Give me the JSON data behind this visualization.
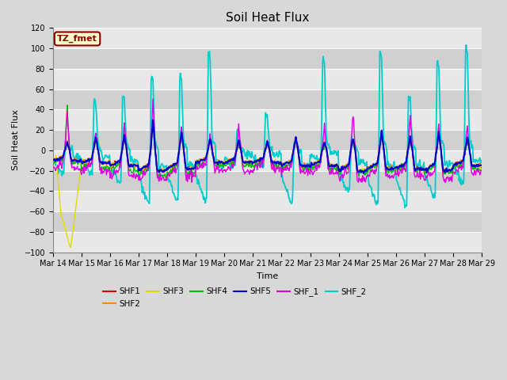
{
  "title": "Soil Heat Flux",
  "xlabel": "Time",
  "ylabel": "Soil Heat Flux",
  "ylim": [
    -100,
    120
  ],
  "bg_color": "#d8d8d8",
  "plot_bg_light": "#e8e8e8",
  "plot_bg_dark": "#d0d0d0",
  "grid_color": "#ffffff",
  "annotation_text": "TZ_fmet",
  "annotation_bg": "#ffffcc",
  "annotation_border": "#880000",
  "series_colors": {
    "SHF1": "#dd0000",
    "SHF2": "#ff8800",
    "SHF3": "#dddd00",
    "SHF4": "#00bb00",
    "SHF5": "#0000cc",
    "SHF_1": "#dd00dd",
    "SHF_2": "#00cccc"
  },
  "x_tick_labels": [
    "Mar 14",
    "Mar 15",
    "Mar 16",
    "Mar 17",
    "Mar 18",
    "Mar 19",
    "Mar 20",
    "Mar 21",
    "Mar 22",
    "Mar 23",
    "Mar 24",
    "Mar 25",
    "Mar 26",
    "Mar 27",
    "Mar 28",
    "Mar 29"
  ],
  "yticks": [
    -100,
    -80,
    -60,
    -40,
    -20,
    0,
    20,
    40,
    60,
    80,
    100,
    120
  ],
  "n_days": 15,
  "pts_per_day": 48
}
